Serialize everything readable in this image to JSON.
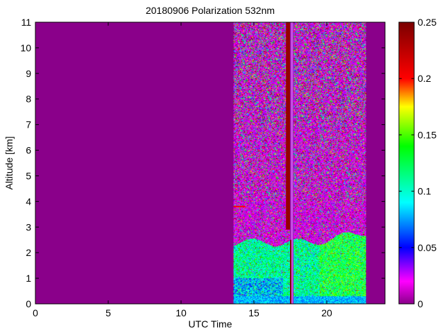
{
  "chart_data": {
    "type": "heatmap",
    "title": "20180906 Polarization 532nm",
    "xlabel": "UTC Time",
    "ylabel": "Altitude [km]",
    "xlim": [
      0,
      24
    ],
    "ylim": [
      0,
      11
    ],
    "x_ticks": [
      "0",
      "5",
      "10",
      "15",
      "20"
    ],
    "y_ticks": [
      "0",
      "1",
      "2",
      "3",
      "4",
      "5",
      "6",
      "7",
      "8",
      "9",
      "10",
      "11"
    ],
    "colorbar": {
      "range": [
        0,
        0.25
      ],
      "ticks": [
        "0",
        "0.05",
        "0.1",
        "0.15",
        "0.2",
        "0.25"
      ],
      "colormap": "hsv-like",
      "stops": [
        {
          "value": 0.0,
          "color": "#8a008a"
        },
        {
          "value": 0.02,
          "color": "#ff00ff"
        },
        {
          "value": 0.05,
          "color": "#0000ff"
        },
        {
          "value": 0.09,
          "color": "#00ffff"
        },
        {
          "value": 0.14,
          "color": "#00ff00"
        },
        {
          "value": 0.175,
          "color": "#ffff00"
        },
        {
          "value": 0.2,
          "color": "#ff0000"
        },
        {
          "value": 0.25,
          "color": "#7a0000"
        }
      ]
    },
    "background_color": "#8a008a",
    "data_coverage": {
      "time_start": 13.6,
      "time_end": 22.7
    },
    "features": [
      {
        "kind": "boundary_layer",
        "time_start": 13.6,
        "time_end": 22.7,
        "altitude_top": 2.4,
        "mean_value": 0.1
      },
      {
        "kind": "surface_layer",
        "time_start": 13.6,
        "time_end": 22.7,
        "altitude_top": 0.3,
        "mean_value": 0.07
      },
      {
        "kind": "noise_region",
        "time_start": 13.6,
        "time_end": 22.7,
        "altitude_bottom": 2.4,
        "altitude_top": 11
      },
      {
        "kind": "aerosol_line",
        "time_start": 13.6,
        "time_end": 14.4,
        "altitude": 3.8,
        "mean_value": 0.2
      },
      {
        "kind": "cloud",
        "time_start": 17.2,
        "time_end": 17.5,
        "altitude_bottom": 2.9,
        "altitude_top": 11,
        "mean_value": 0.24
      },
      {
        "kind": "gap",
        "time": 17.6,
        "altitude_bottom": 0,
        "altitude_top": 11
      }
    ]
  }
}
